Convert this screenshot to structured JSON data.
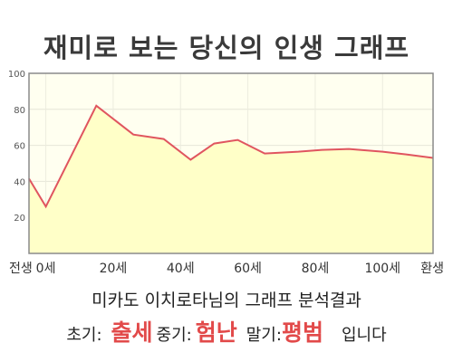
{
  "header": {
    "title": "재미로 보는 당신의 인생 그래프"
  },
  "result": {
    "summary": "미카도 이치로타님의 그래프 분석결과",
    "early_label": "초기:",
    "early_value": "출세",
    "middle_label": "중기:",
    "middle_value": "험난",
    "late_label": "말기:",
    "late_value": "평범",
    "ending": "입니다"
  },
  "colors": {
    "line": "#e0555f",
    "fill": "#ffffc8",
    "plot_bg": "#fffff0",
    "highlight": "#e24a4a"
  },
  "chart_data": {
    "type": "area",
    "title": "재미로 보는 당신의 인생 그래프",
    "xlabel": "",
    "ylabel": "",
    "x_ticks": [
      {
        "x": -5,
        "label": "전생"
      },
      {
        "x": 0,
        "label": "0세"
      },
      {
        "x": 20,
        "label": "20세"
      },
      {
        "x": 40,
        "label": "40세"
      },
      {
        "x": 60,
        "label": "60세"
      },
      {
        "x": 80,
        "label": "80세"
      },
      {
        "x": 100,
        "label": "100세"
      },
      {
        "x": 115,
        "label": "환생"
      }
    ],
    "y_ticks": [
      20,
      40,
      60,
      80,
      100
    ],
    "xlim": [
      -5,
      115
    ],
    "ylim": [
      0,
      100
    ],
    "grid": true,
    "series": [
      {
        "x": [
          -5,
          0,
          15,
          26,
          35,
          43,
          50,
          57,
          65,
          75,
          82,
          90,
          100,
          107,
          115
        ],
        "values": [
          41.5,
          26,
          82,
          66,
          63.5,
          52,
          61,
          63,
          55.5,
          56.5,
          57.5,
          58,
          56.5,
          55,
          53
        ]
      }
    ]
  }
}
